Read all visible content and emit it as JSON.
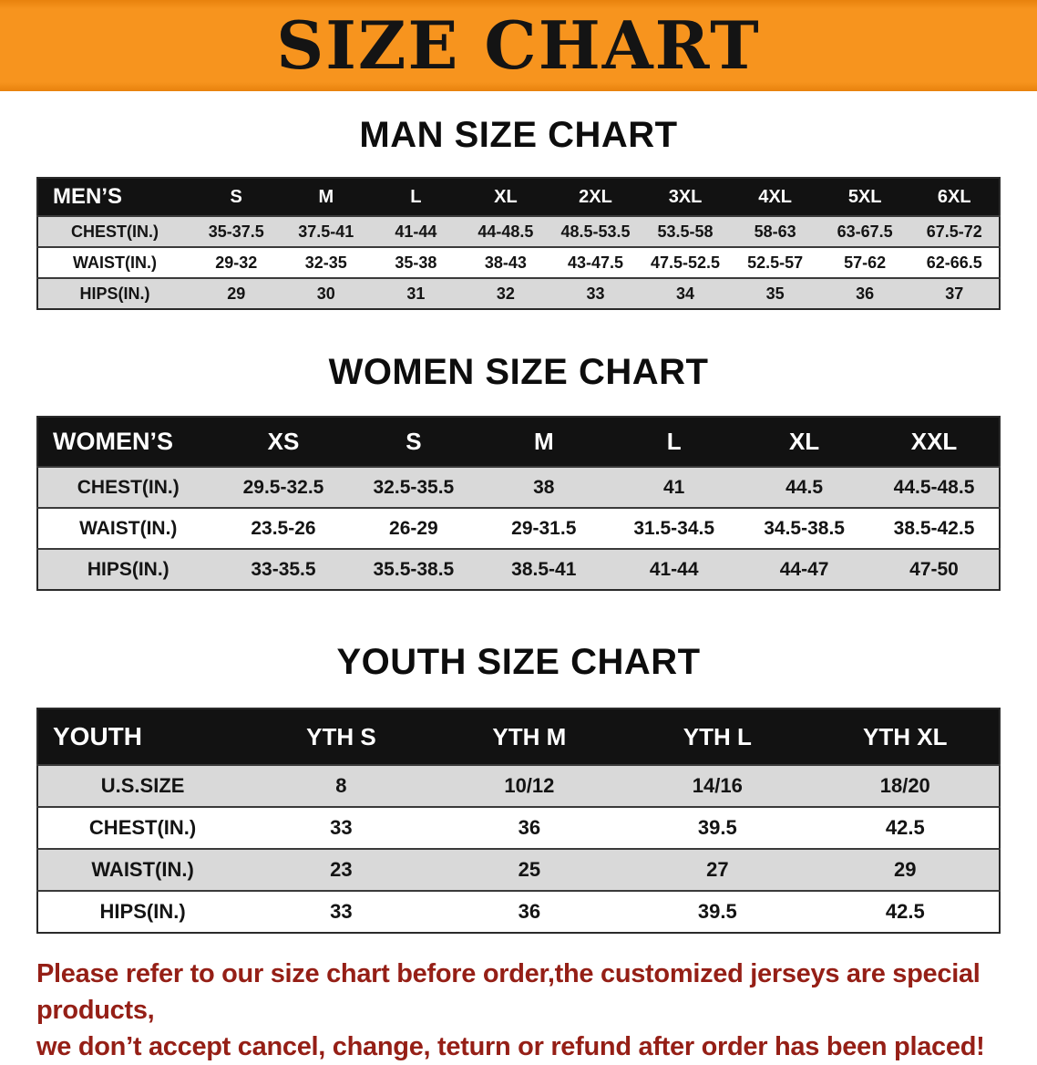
{
  "banner": {
    "title": "SIZE CHART"
  },
  "men": {
    "heading": "MAN SIZE CHART",
    "table": {
      "header": [
        "MEN’S",
        "S",
        "M",
        "L",
        "XL",
        "2XL",
        "3XL",
        "4XL",
        "5XL",
        "6XL"
      ],
      "rows": [
        {
          "label": "CHEST(IN.)",
          "values": [
            "35-37.5",
            "37.5-41",
            "41-44",
            "44-48.5",
            "48.5-53.5",
            "53.5-58",
            "58-63",
            "63-67.5",
            "67.5-72"
          ]
        },
        {
          "label": "WAIST(IN.)",
          "values": [
            "29-32",
            "32-35",
            "35-38",
            "38-43",
            "43-47.5",
            "47.5-52.5",
            "52.5-57",
            "57-62",
            "62-66.5"
          ]
        },
        {
          "label": "HIPS(IN.)",
          "values": [
            "29",
            "30",
            "31",
            "32",
            "33",
            "34",
            "35",
            "36",
            "37"
          ]
        }
      ]
    }
  },
  "women": {
    "heading": "WOMEN SIZE CHART",
    "table": {
      "header": [
        "WOMEN’S",
        "XS",
        "S",
        "M",
        "L",
        "XL",
        "XXL"
      ],
      "rows": [
        {
          "label": "CHEST(IN.)",
          "values": [
            "29.5-32.5",
            "32.5-35.5",
            "38",
            "41",
            "44.5",
            "44.5-48.5"
          ]
        },
        {
          "label": "WAIST(IN.)",
          "values": [
            "23.5-26",
            "26-29",
            "29-31.5",
            "31.5-34.5",
            "34.5-38.5",
            "38.5-42.5"
          ]
        },
        {
          "label": "HIPS(IN.)",
          "values": [
            "33-35.5",
            "35.5-38.5",
            "38.5-41",
            "41-44",
            "44-47",
            "47-50"
          ]
        }
      ]
    }
  },
  "youth": {
    "heading": "YOUTH SIZE CHART",
    "table": {
      "header": [
        "YOUTH",
        "YTH S",
        "YTH M",
        "YTH L",
        "YTH XL"
      ],
      "rows": [
        {
          "label": "U.S.SIZE",
          "values": [
            "8",
            "10/12",
            "14/16",
            "18/20"
          ]
        },
        {
          "label": "CHEST(IN.)",
          "values": [
            "33",
            "36",
            "39.5",
            "42.5"
          ]
        },
        {
          "label": "WAIST(IN.)",
          "values": [
            "23",
            "25",
            "27",
            "29"
          ]
        },
        {
          "label": "HIPS(IN.)",
          "values": [
            "33",
            "36",
            "39.5",
            "42.5"
          ]
        }
      ]
    }
  },
  "disclaimer": {
    "line1": "Please refer to our size chart before order,the customized jerseys are special products,",
    "line2": "we don’t accept cancel, change, teturn or refund after order has been placed!"
  },
  "colors": {
    "banner_bg": "#f7941e",
    "banner_edge": "#e8820d",
    "header_bg": "#121212",
    "row_alt_bg": "#d9d9d9",
    "disclaimer_color": "#951f16"
  }
}
